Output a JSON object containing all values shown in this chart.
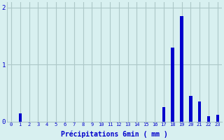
{
  "hours": [
    0,
    1,
    2,
    3,
    4,
    5,
    6,
    7,
    8,
    9,
    10,
    11,
    12,
    13,
    14,
    15,
    16,
    17,
    18,
    19,
    20,
    21,
    22,
    23
  ],
  "values": [
    0.0,
    0.15,
    0.0,
    0.0,
    0.0,
    0.0,
    0.0,
    0.0,
    0.0,
    0.0,
    0.0,
    0.0,
    0.0,
    0.0,
    0.0,
    0.0,
    0.0,
    0.25,
    1.3,
    1.85,
    0.45,
    0.35,
    0.1,
    0.12
  ],
  "bar_color": "#0000cc",
  "background_color": "#d8f0f0",
  "grid_color": "#adc8c8",
  "xlabel": "Précipitations 6min ( mm )",
  "xlabel_color": "#0000cc",
  "tick_color": "#0000cc",
  "ylim": [
    0,
    2.1
  ],
  "yticks": [
    0,
    1,
    2
  ],
  "bar_width": 0.35,
  "fig_bg": "#d8f0f0"
}
